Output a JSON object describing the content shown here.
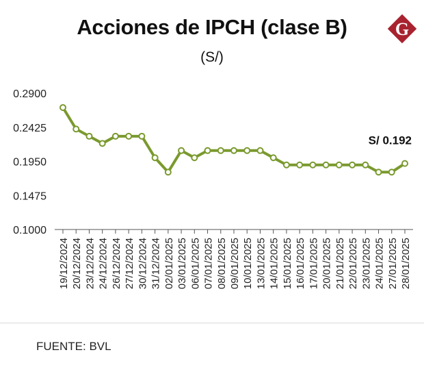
{
  "header": {
    "title": "Acciones de IPCH (clase B)",
    "subtitle": "(S/)",
    "logo_letter": "G"
  },
  "chart_data": {
    "type": "line",
    "title": "Acciones de IPCH (clase B)",
    "subtitle": "(S/)",
    "xlabel": "",
    "ylabel": "",
    "ylim": [
      0.1,
      0.29
    ],
    "yticks": [
      "0.2900",
      "0.2425",
      "0.1950",
      "0.1475",
      "0.1000"
    ],
    "ytick_values": [
      0.29,
      0.2425,
      0.195,
      0.1475,
      0.1
    ],
    "categories": [
      "19/12/2024",
      "20/12/2024",
      "23/12/2024",
      "24/12/2024",
      "26/12/2024",
      "27/12/2024",
      "30/12/2024",
      "31/12/2024",
      "02/01/2025",
      "03/01/2025",
      "06/01/2025",
      "07/01/2025",
      "08/01/2025",
      "09/01/2025",
      "10/01/2025",
      "13/01/2025",
      "14/01/2025",
      "15/01/2025",
      "16/01/2025",
      "17/01/2025",
      "20/01/2025",
      "21/01/2025",
      "22/01/2025",
      "23/01/2025",
      "24/01/2025",
      "27/01/2025",
      "28/01/2025"
    ],
    "series": [
      {
        "values": [
          0.27,
          0.24,
          0.23,
          0.22,
          0.23,
          0.23,
          0.23,
          0.2,
          0.18,
          0.21,
          0.2,
          0.21,
          0.21,
          0.21,
          0.21,
          0.21,
          0.2,
          0.19,
          0.19,
          0.19,
          0.19,
          0.19,
          0.19,
          0.19,
          0.18,
          0.18,
          0.192
        ]
      }
    ],
    "annotation": {
      "text": "S/ 0.192",
      "index": 26
    },
    "grid": false,
    "colors": {
      "line": "#7a9a2e",
      "marker_fill": "#ffffff",
      "axis": "#555555"
    }
  },
  "footer": {
    "source": "FUENTE: BVL"
  },
  "colors": {
    "logo": "#a8232f"
  }
}
